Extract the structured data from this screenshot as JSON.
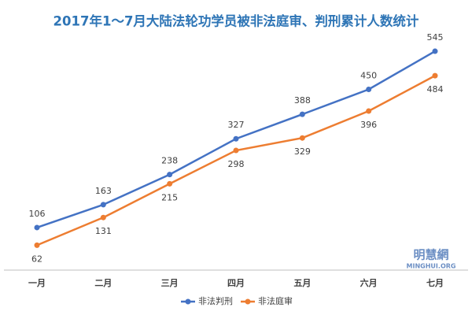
{
  "chart_data": {
    "type": "line",
    "title": "2017年1～7月大陆法轮功学员被非法庭审、判刑累计人数统计",
    "categories": [
      "一月",
      "二月",
      "三月",
      "四月",
      "五月",
      "六月",
      "七月"
    ],
    "series": [
      {
        "name": "非法判刑",
        "color": "#4472c4",
        "values": [
          106,
          163,
          238,
          327,
          388,
          450,
          545
        ]
      },
      {
        "name": "非法庭审",
        "color": "#ed7d31",
        "values": [
          62,
          131,
          215,
          298,
          329,
          396,
          484
        ]
      }
    ],
    "ylim": [
      0,
      600
    ],
    "grid": false,
    "legend": "bottom",
    "annotations": [
      "明慧網",
      "MINGHUI.ORG"
    ]
  }
}
